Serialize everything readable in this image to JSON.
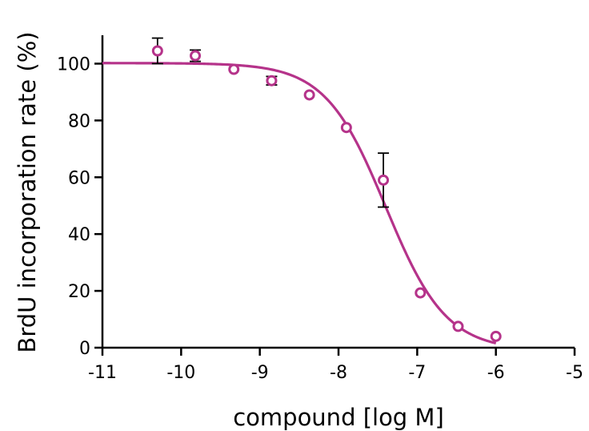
{
  "chart_data": {
    "type": "scatter",
    "title": "",
    "xlabel": "compound [log M]",
    "ylabel": "BrdU incorporation rate (%)",
    "xlim": [
      -11,
      -5
    ],
    "ylim": [
      0,
      110
    ],
    "x_ticks": [
      -11,
      -10,
      -9,
      -8,
      -7,
      -6,
      -5
    ],
    "y_ticks": [
      0,
      20,
      40,
      60,
      80,
      100
    ],
    "x_tick_labels": [
      "-11",
      "-10",
      "-9",
      "-8",
      "-7",
      "-6",
      "-5"
    ],
    "y_tick_labels": [
      "0",
      "20",
      "40",
      "60",
      "80",
      "100"
    ],
    "grid": false,
    "legend": false,
    "color": "#b5338a",
    "error_color": "#000000",
    "series": [
      {
        "points": [
          {
            "x": -10.3,
            "y": 104.5,
            "err": 4.5
          },
          {
            "x": -9.82,
            "y": 102.8,
            "err": 2.0
          },
          {
            "x": -9.33,
            "y": 98.0
          },
          {
            "x": -8.85,
            "y": 94.0,
            "err": 1.5
          },
          {
            "x": -8.37,
            "y": 89.0
          },
          {
            "x": -7.9,
            "y": 77.5
          },
          {
            "x": -7.43,
            "y": 59.0,
            "err": 9.5
          },
          {
            "x": -6.96,
            "y": 19.3
          },
          {
            "x": -6.48,
            "y": 7.5
          },
          {
            "x": -6.0,
            "y": 4.0
          }
        ],
        "fit": {
          "model": "four-parameter logistic",
          "top": 100.2,
          "bottom": -1.0,
          "log_ic50": -7.4,
          "hill_slope": -1.13,
          "x_range": [
            -11,
            -6
          ]
        }
      }
    ]
  }
}
